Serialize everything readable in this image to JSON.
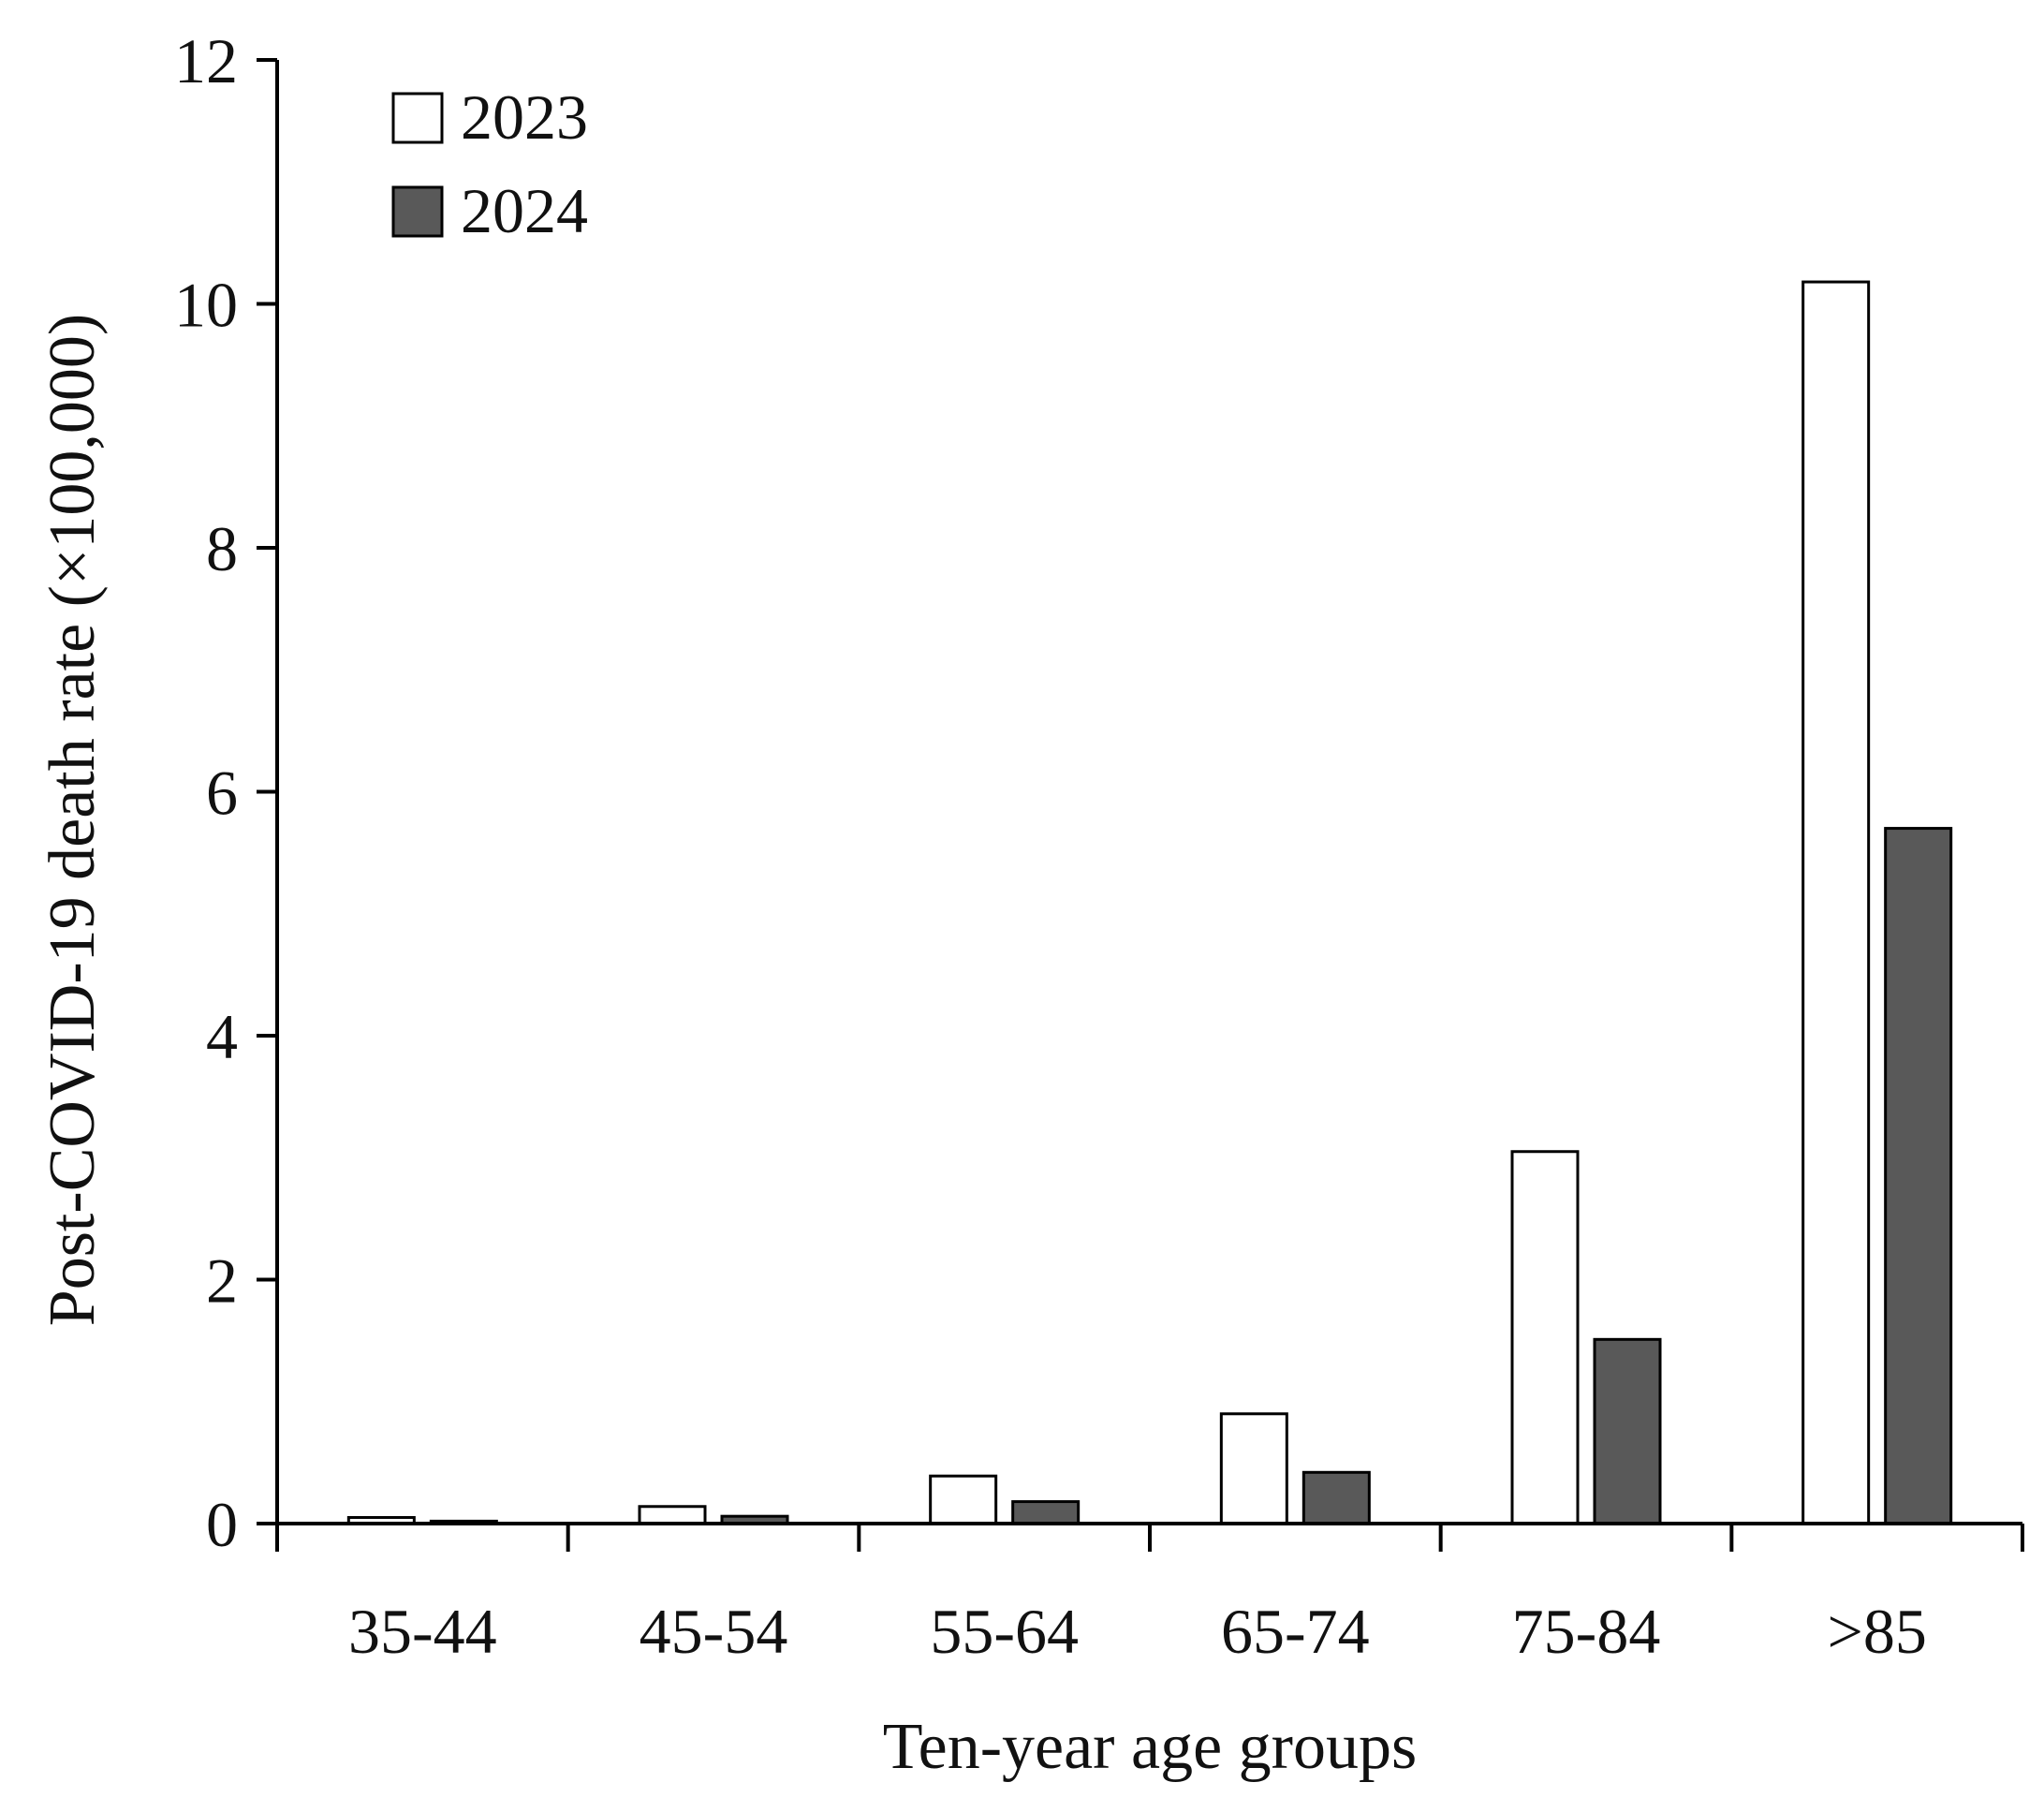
{
  "chart_data": {
    "type": "bar",
    "xlabel": "Ten-year age groups",
    "ylabel": "Post-COVID-19 death rate (×100,000)",
    "ylim": [
      0,
      12
    ],
    "yticks": [
      0,
      2,
      4,
      6,
      8,
      10,
      12
    ],
    "categories": [
      "35-44",
      "45-54",
      "55-64",
      "65-74",
      "75-84",
      ">85"
    ],
    "series": [
      {
        "name": "2023",
        "color": "#ffffff",
        "values": [
          0.05,
          0.14,
          0.39,
          0.9,
          3.05,
          10.18
        ]
      },
      {
        "name": "2024",
        "color": "#595959",
        "values": [
          0.02,
          0.06,
          0.18,
          0.42,
          1.51,
          5.7
        ]
      }
    ],
    "legend_position": "top-left",
    "grid": false
  }
}
